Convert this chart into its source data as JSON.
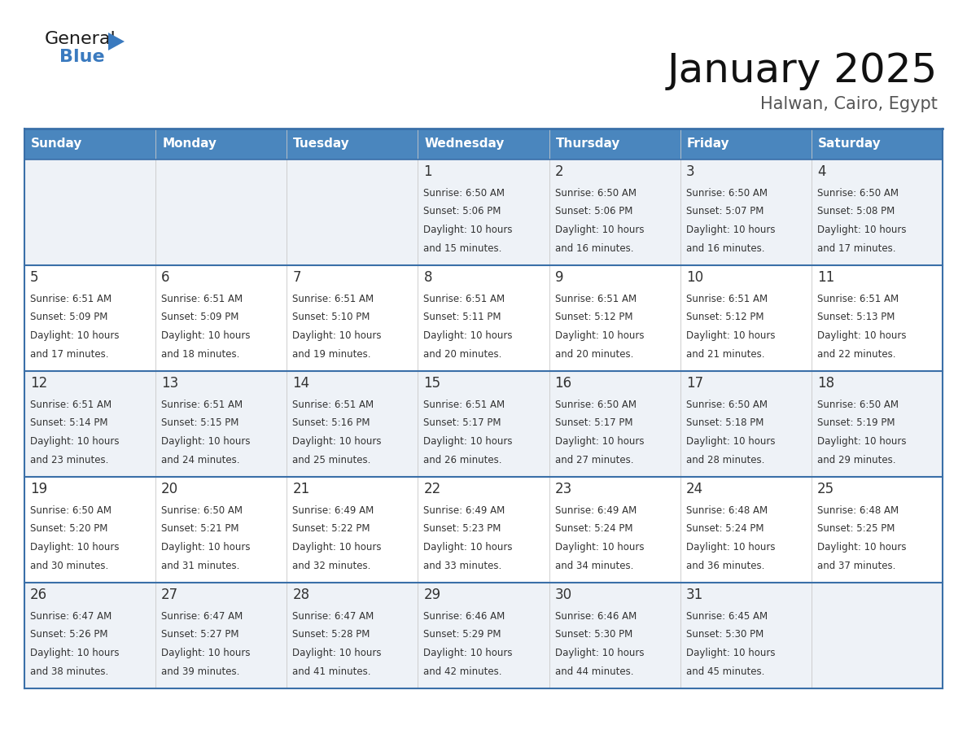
{
  "title": "January 2025",
  "subtitle": "Halwan, Cairo, Egypt",
  "header_color": "#4a86be",
  "header_text_color": "#ffffff",
  "row0_bg": "#eef2f7",
  "row1_bg": "#ffffff",
  "row2_bg": "#eef2f7",
  "row3_bg": "#ffffff",
  "row4_bg": "#eef2f7",
  "border_color": "#3a6fa8",
  "text_color": "#333333",
  "day_names": [
    "Sunday",
    "Monday",
    "Tuesday",
    "Wednesday",
    "Thursday",
    "Friday",
    "Saturday"
  ],
  "days": [
    {
      "day": 1,
      "col": 3,
      "row": 0,
      "sunrise": "6:50 AM",
      "sunset": "5:06 PM",
      "mins": "15"
    },
    {
      "day": 2,
      "col": 4,
      "row": 0,
      "sunrise": "6:50 AM",
      "sunset": "5:06 PM",
      "mins": "16"
    },
    {
      "day": 3,
      "col": 5,
      "row": 0,
      "sunrise": "6:50 AM",
      "sunset": "5:07 PM",
      "mins": "16"
    },
    {
      "day": 4,
      "col": 6,
      "row": 0,
      "sunrise": "6:50 AM",
      "sunset": "5:08 PM",
      "mins": "17"
    },
    {
      "day": 5,
      "col": 0,
      "row": 1,
      "sunrise": "6:51 AM",
      "sunset": "5:09 PM",
      "mins": "17"
    },
    {
      "day": 6,
      "col": 1,
      "row": 1,
      "sunrise": "6:51 AM",
      "sunset": "5:09 PM",
      "mins": "18"
    },
    {
      "day": 7,
      "col": 2,
      "row": 1,
      "sunrise": "6:51 AM",
      "sunset": "5:10 PM",
      "mins": "19"
    },
    {
      "day": 8,
      "col": 3,
      "row": 1,
      "sunrise": "6:51 AM",
      "sunset": "5:11 PM",
      "mins": "20"
    },
    {
      "day": 9,
      "col": 4,
      "row": 1,
      "sunrise": "6:51 AM",
      "sunset": "5:12 PM",
      "mins": "20"
    },
    {
      "day": 10,
      "col": 5,
      "row": 1,
      "sunrise": "6:51 AM",
      "sunset": "5:12 PM",
      "mins": "21"
    },
    {
      "day": 11,
      "col": 6,
      "row": 1,
      "sunrise": "6:51 AM",
      "sunset": "5:13 PM",
      "mins": "22"
    },
    {
      "day": 12,
      "col": 0,
      "row": 2,
      "sunrise": "6:51 AM",
      "sunset": "5:14 PM",
      "mins": "23"
    },
    {
      "day": 13,
      "col": 1,
      "row": 2,
      "sunrise": "6:51 AM",
      "sunset": "5:15 PM",
      "mins": "24"
    },
    {
      "day": 14,
      "col": 2,
      "row": 2,
      "sunrise": "6:51 AM",
      "sunset": "5:16 PM",
      "mins": "25"
    },
    {
      "day": 15,
      "col": 3,
      "row": 2,
      "sunrise": "6:51 AM",
      "sunset": "5:17 PM",
      "mins": "26"
    },
    {
      "day": 16,
      "col": 4,
      "row": 2,
      "sunrise": "6:50 AM",
      "sunset": "5:17 PM",
      "mins": "27"
    },
    {
      "day": 17,
      "col": 5,
      "row": 2,
      "sunrise": "6:50 AM",
      "sunset": "5:18 PM",
      "mins": "28"
    },
    {
      "day": 18,
      "col": 6,
      "row": 2,
      "sunrise": "6:50 AM",
      "sunset": "5:19 PM",
      "mins": "29"
    },
    {
      "day": 19,
      "col": 0,
      "row": 3,
      "sunrise": "6:50 AM",
      "sunset": "5:20 PM",
      "mins": "30"
    },
    {
      "day": 20,
      "col": 1,
      "row": 3,
      "sunrise": "6:50 AM",
      "sunset": "5:21 PM",
      "mins": "31"
    },
    {
      "day": 21,
      "col": 2,
      "row": 3,
      "sunrise": "6:49 AM",
      "sunset": "5:22 PM",
      "mins": "32"
    },
    {
      "day": 22,
      "col": 3,
      "row": 3,
      "sunrise": "6:49 AM",
      "sunset": "5:23 PM",
      "mins": "33"
    },
    {
      "day": 23,
      "col": 4,
      "row": 3,
      "sunrise": "6:49 AM",
      "sunset": "5:24 PM",
      "mins": "34"
    },
    {
      "day": 24,
      "col": 5,
      "row": 3,
      "sunrise": "6:48 AM",
      "sunset": "5:24 PM",
      "mins": "36"
    },
    {
      "day": 25,
      "col": 6,
      "row": 3,
      "sunrise": "6:48 AM",
      "sunset": "5:25 PM",
      "mins": "37"
    },
    {
      "day": 26,
      "col": 0,
      "row": 4,
      "sunrise": "6:47 AM",
      "sunset": "5:26 PM",
      "mins": "38"
    },
    {
      "day": 27,
      "col": 1,
      "row": 4,
      "sunrise": "6:47 AM",
      "sunset": "5:27 PM",
      "mins": "39"
    },
    {
      "day": 28,
      "col": 2,
      "row": 4,
      "sunrise": "6:47 AM",
      "sunset": "5:28 PM",
      "mins": "41"
    },
    {
      "day": 29,
      "col": 3,
      "row": 4,
      "sunrise": "6:46 AM",
      "sunset": "5:29 PM",
      "mins": "42"
    },
    {
      "day": 30,
      "col": 4,
      "row": 4,
      "sunrise": "6:46 AM",
      "sunset": "5:30 PM",
      "mins": "44"
    },
    {
      "day": 31,
      "col": 5,
      "row": 4,
      "sunrise": "6:45 AM",
      "sunset": "5:30 PM",
      "mins": "45"
    }
  ],
  "logo_color_general": "#1a1a1a",
  "logo_color_blue": "#3a7abf",
  "title_fontsize": 36,
  "subtitle_fontsize": 15,
  "header_fontsize": 11,
  "day_num_fontsize": 12,
  "cell_text_fontsize": 8.5
}
